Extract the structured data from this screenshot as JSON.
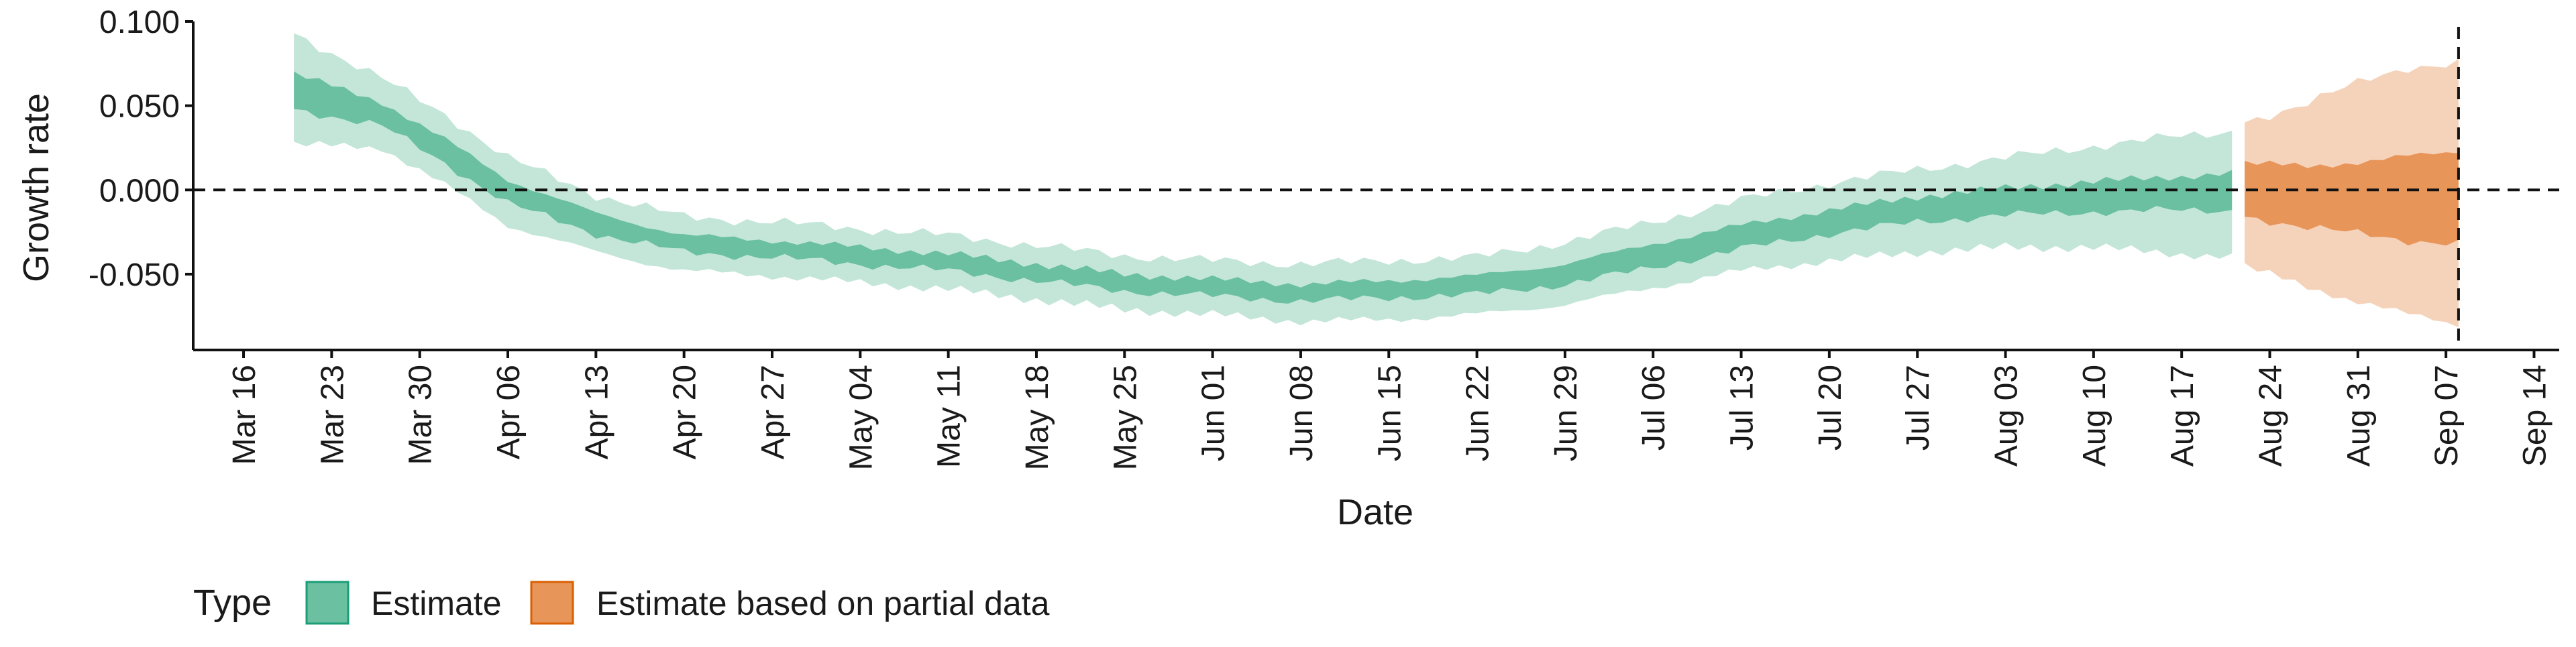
{
  "chart_data": {
    "type": "area",
    "xlabel": "Date",
    "ylabel": "Growth rate",
    "xlim": [
      "2020-03-12",
      "2020-09-16"
    ],
    "ylim": [
      -0.095,
      0.1
    ],
    "x_ticks": [
      "2020-03-16",
      "2020-03-23",
      "2020-03-30",
      "2020-04-06",
      "2020-04-13",
      "2020-04-20",
      "2020-04-27",
      "2020-05-04",
      "2020-05-11",
      "2020-05-18",
      "2020-05-25",
      "2020-06-01",
      "2020-06-08",
      "2020-06-15",
      "2020-06-22",
      "2020-06-29",
      "2020-07-06",
      "2020-07-13",
      "2020-07-20",
      "2020-07-27",
      "2020-08-03",
      "2020-08-10",
      "2020-08-17",
      "2020-08-24",
      "2020-08-31",
      "2020-09-07",
      "2020-09-14"
    ],
    "x_tick_labels": [
      "Mar 16",
      "Mar 23",
      "Mar 30",
      "Apr 06",
      "Apr 13",
      "Apr 20",
      "Apr 27",
      "May 04",
      "May 11",
      "May 18",
      "May 25",
      "Jun 01",
      "Jun 08",
      "Jun 15",
      "Jun 22",
      "Jun 29",
      "Jul 06",
      "Jul 13",
      "Jul 20",
      "Jul 27",
      "Aug 03",
      "Aug 10",
      "Aug 17",
      "Aug 24",
      "Aug 31",
      "Sep 07",
      "Sep 14"
    ],
    "y_ticks": [
      0.1,
      0.05,
      0.0,
      -0.05
    ],
    "y_tick_labels": [
      "0.100",
      "0.050",
      "0.000",
      "-0.050"
    ],
    "reference_lines": {
      "horizontal_y": 0.0,
      "vertical_x": "2020-09-08"
    },
    "grid": false,
    "legend": {
      "title": "Type",
      "position": "bottom-left",
      "items": [
        {
          "label": "Estimate",
          "color": "#6ac0a0"
        },
        {
          "label": "Estimate based on partial data",
          "color": "#e8955a"
        }
      ]
    },
    "series": [
      {
        "name": "Estimate",
        "color_inner": "#6ac0a0",
        "color_outer": "#c3e6d8",
        "points": [
          {
            "x": "2020-03-20",
            "median": 0.058,
            "lower_50": 0.048,
            "upper_50": 0.069,
            "lower_90": 0.027,
            "upper_90": 0.093
          },
          {
            "x": "2020-03-27",
            "median": 0.045,
            "lower_50": 0.038,
            "upper_50": 0.052,
            "lower_90": 0.025,
            "upper_90": 0.066
          },
          {
            "x": "2020-04-01",
            "median": 0.023,
            "lower_50": 0.016,
            "upper_50": 0.03,
            "lower_90": 0.003,
            "upper_90": 0.045
          },
          {
            "x": "2020-04-06",
            "median": -0.001,
            "lower_50": -0.008,
            "upper_50": 0.006,
            "lower_90": -0.021,
            "upper_90": 0.019
          },
          {
            "x": "2020-04-13",
            "median": -0.02,
            "lower_50": -0.026,
            "upper_50": -0.014,
            "lower_90": -0.037,
            "upper_90": -0.003
          },
          {
            "x": "2020-04-20",
            "median": -0.032,
            "lower_50": -0.037,
            "upper_50": -0.027,
            "lower_90": -0.048,
            "upper_90": -0.016
          },
          {
            "x": "2020-04-27",
            "median": -0.035,
            "lower_50": -0.04,
            "upper_50": -0.03,
            "lower_90": -0.051,
            "upper_90": -0.019
          },
          {
            "x": "2020-05-04",
            "median": -0.039,
            "lower_50": -0.044,
            "upper_50": -0.034,
            "lower_90": -0.055,
            "upper_90": -0.023
          },
          {
            "x": "2020-05-11",
            "median": -0.043,
            "lower_50": -0.048,
            "upper_50": -0.038,
            "lower_90": -0.059,
            "upper_90": -0.027
          },
          {
            "x": "2020-05-18",
            "median": -0.049,
            "lower_50": -0.054,
            "upper_50": -0.044,
            "lower_90": -0.065,
            "upper_90": -0.033
          },
          {
            "x": "2020-05-25",
            "median": -0.055,
            "lower_50": -0.06,
            "upper_50": -0.05,
            "lower_90": -0.071,
            "upper_90": -0.039
          },
          {
            "x": "2020-06-01",
            "median": -0.058,
            "lower_50": -0.063,
            "upper_50": -0.053,
            "lower_90": -0.074,
            "upper_90": -0.042
          },
          {
            "x": "2020-06-08",
            "median": -0.061,
            "lower_50": -0.066,
            "upper_50": -0.056,
            "lower_90": -0.078,
            "upper_90": -0.044
          },
          {
            "x": "2020-06-15",
            "median": -0.059,
            "lower_50": -0.064,
            "upper_50": -0.054,
            "lower_90": -0.077,
            "upper_90": -0.042
          },
          {
            "x": "2020-06-22",
            "median": -0.057,
            "lower_50": -0.062,
            "upper_50": -0.051,
            "lower_90": -0.074,
            "upper_90": -0.04
          },
          {
            "x": "2020-06-29",
            "median": -0.05,
            "lower_50": -0.056,
            "upper_50": -0.044,
            "lower_90": -0.068,
            "upper_90": -0.031
          },
          {
            "x": "2020-07-06",
            "median": -0.039,
            "lower_50": -0.046,
            "upper_50": -0.032,
            "lower_90": -0.058,
            "upper_90": -0.019
          },
          {
            "x": "2020-07-13",
            "median": -0.028,
            "lower_50": -0.035,
            "upper_50": -0.021,
            "lower_90": -0.048,
            "upper_90": -0.006
          },
          {
            "x": "2020-07-20",
            "median": -0.019,
            "lower_50": -0.026,
            "upper_50": -0.012,
            "lower_90": -0.042,
            "upper_90": 0.004
          },
          {
            "x": "2020-07-27",
            "median": -0.012,
            "lower_50": -0.019,
            "upper_50": -0.004,
            "lower_90": -0.037,
            "upper_90": 0.012
          },
          {
            "x": "2020-08-03",
            "median": -0.007,
            "lower_50": -0.015,
            "upper_50": 0.001,
            "lower_90": -0.034,
            "upper_90": 0.019
          },
          {
            "x": "2020-08-10",
            "median": -0.004,
            "lower_50": -0.013,
            "upper_50": 0.005,
            "lower_90": -0.034,
            "upper_90": 0.026
          },
          {
            "x": "2020-08-17",
            "median": -0.002,
            "lower_50": -0.012,
            "upper_50": 0.008,
            "lower_90": -0.038,
            "upper_90": 0.032
          },
          {
            "x": "2020-08-21",
            "median": -0.001,
            "lower_50": -0.012,
            "upper_50": 0.01,
            "lower_90": -0.04,
            "upper_90": 0.035
          }
        ]
      },
      {
        "name": "Estimate based on partial data",
        "color_inner": "#e8955a",
        "color_outer": "#f5d3ba",
        "points": [
          {
            "x": "2020-08-22",
            "median": 0.0,
            "lower_50": -0.016,
            "upper_50": 0.016,
            "lower_90": -0.045,
            "upper_90": 0.04
          },
          {
            "x": "2020-08-27",
            "median": -0.004,
            "lower_50": -0.022,
            "upper_50": 0.014,
            "lower_90": -0.058,
            "upper_90": 0.052
          },
          {
            "x": "2020-09-01",
            "median": -0.006,
            "lower_50": -0.027,
            "upper_50": 0.017,
            "lower_90": -0.068,
            "upper_90": 0.066
          },
          {
            "x": "2020-09-04",
            "median": -0.005,
            "lower_50": -0.03,
            "upper_50": 0.02,
            "lower_90": -0.074,
            "upper_90": 0.073
          },
          {
            "x": "2020-09-08",
            "median": -0.004,
            "lower_50": -0.032,
            "upper_50": 0.023,
            "lower_90": -0.08,
            "upper_90": 0.075
          }
        ]
      }
    ]
  }
}
